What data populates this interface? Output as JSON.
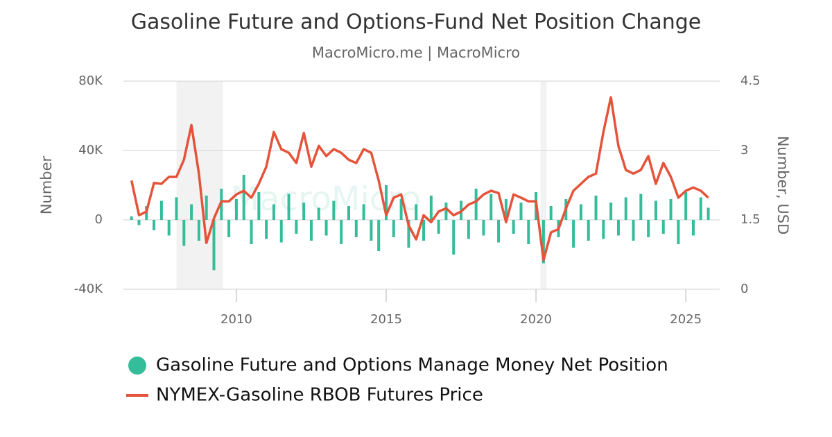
{
  "chart_data": {
    "type": "bar-line",
    "title": "Gasoline Future and Options-Fund Net Position Change",
    "subtitle": "MacroMicro.me | MacroMicro",
    "watermark": "MacroMicro",
    "y_label": "Number",
    "y2_label": "Number, USD",
    "xlim": [
      2006.23,
      2026.13
    ],
    "xticks": [
      2010,
      2015,
      2020,
      2025
    ],
    "ylim": [
      -40000,
      80000
    ],
    "yticks": [
      {
        "value": -40000,
        "label": "-40K"
      },
      0,
      {
        "value": 40000,
        "label": "40K"
      },
      {
        "value": 80000,
        "label": "80K"
      }
    ],
    "y2lim": [
      0,
      4.5
    ],
    "y2ticks": [
      0,
      1.5,
      3,
      4.5
    ],
    "grid": true,
    "shaded_ranges": [
      [
        2008.0,
        2009.55
      ],
      [
        2020.15,
        2020.35
      ]
    ],
    "x": [
      2006.5,
      2006.75,
      2007,
      2007.25,
      2007.5,
      2007.75,
      2008,
      2008.25,
      2008.5,
      2008.75,
      2009,
      2009.25,
      2009.5,
      2009.75,
      2010,
      2010.25,
      2010.5,
      2010.75,
      2011,
      2011.25,
      2011.5,
      2011.75,
      2012,
      2012.25,
      2012.5,
      2012.75,
      2013,
      2013.25,
      2013.5,
      2013.75,
      2014,
      2014.25,
      2014.5,
      2014.75,
      2015,
      2015.25,
      2015.5,
      2015.75,
      2016,
      2016.25,
      2016.5,
      2016.75,
      2017,
      2017.25,
      2017.5,
      2017.75,
      2018,
      2018.25,
      2018.5,
      2018.75,
      2019,
      2019.25,
      2019.5,
      2019.75,
      2020,
      2020.25,
      2020.5,
      2020.75,
      2021,
      2021.25,
      2021.5,
      2021.75,
      2022,
      2022.25,
      2022.5,
      2022.75,
      2023,
      2023.25,
      2023.5,
      2023.75,
      2024,
      2024.25,
      2024.5,
      2024.75,
      2025,
      2025.25,
      2025.5,
      2025.75
    ],
    "series": [
      {
        "name": "Gasoline Future and Options Manage Money Net Position",
        "type": "bar",
        "color": "#35bc9a",
        "values": [
          2000,
          -3000,
          8000,
          -6000,
          11000,
          -9000,
          13000,
          -15000,
          9000,
          -12000,
          14000,
          -29000,
          18000,
          -10000,
          12000,
          26000,
          -14000,
          16000,
          -11000,
          9000,
          -13000,
          15000,
          -8000,
          10000,
          -12000,
          7000,
          -9000,
          11000,
          -14000,
          8000,
          -10000,
          9000,
          -12000,
          -18000,
          20000,
          -10000,
          12000,
          -16000,
          9000,
          -12000,
          14000,
          -8000,
          10000,
          -20000,
          11000,
          -11000,
          18000,
          -9000,
          15000,
          -13000,
          12000,
          -8000,
          10000,
          -14000,
          16000,
          -25000,
          8000,
          -10000,
          12000,
          -16000,
          9000,
          -12000,
          14000,
          -11000,
          10000,
          -9000,
          13000,
          -12000,
          15000,
          -10000,
          11000,
          -8000,
          12000,
          -14000,
          16000,
          -9000,
          13000,
          7000
        ]
      },
      {
        "name": "NYMEX-Gasoline RBOB Futures Price",
        "type": "line",
        "axis": "y2",
        "color": "#e4533a",
        "values": [
          2.35,
          1.6,
          1.68,
          2.3,
          2.28,
          2.43,
          2.43,
          2.8,
          3.55,
          2.5,
          1.0,
          1.53,
          1.9,
          1.9,
          2.05,
          2.13,
          1.98,
          2.28,
          2.65,
          3.4,
          3.03,
          2.95,
          2.73,
          3.38,
          2.65,
          3.1,
          2.88,
          3.03,
          2.95,
          2.8,
          2.73,
          3.03,
          2.95,
          2.35,
          1.6,
          1.98,
          2.05,
          1.38,
          1.08,
          1.6,
          1.45,
          1.68,
          1.75,
          1.6,
          1.68,
          1.83,
          1.9,
          2.05,
          2.13,
          2.08,
          1.45,
          2.05,
          1.98,
          1.9,
          1.9,
          0.63,
          1.23,
          1.3,
          1.75,
          2.13,
          2.28,
          2.43,
          2.5,
          3.4,
          4.15,
          3.1,
          2.58,
          2.5,
          2.58,
          2.88,
          2.28,
          2.73,
          2.43,
          1.98,
          2.13,
          2.2,
          2.13,
          1.98
        ]
      }
    ]
  }
}
